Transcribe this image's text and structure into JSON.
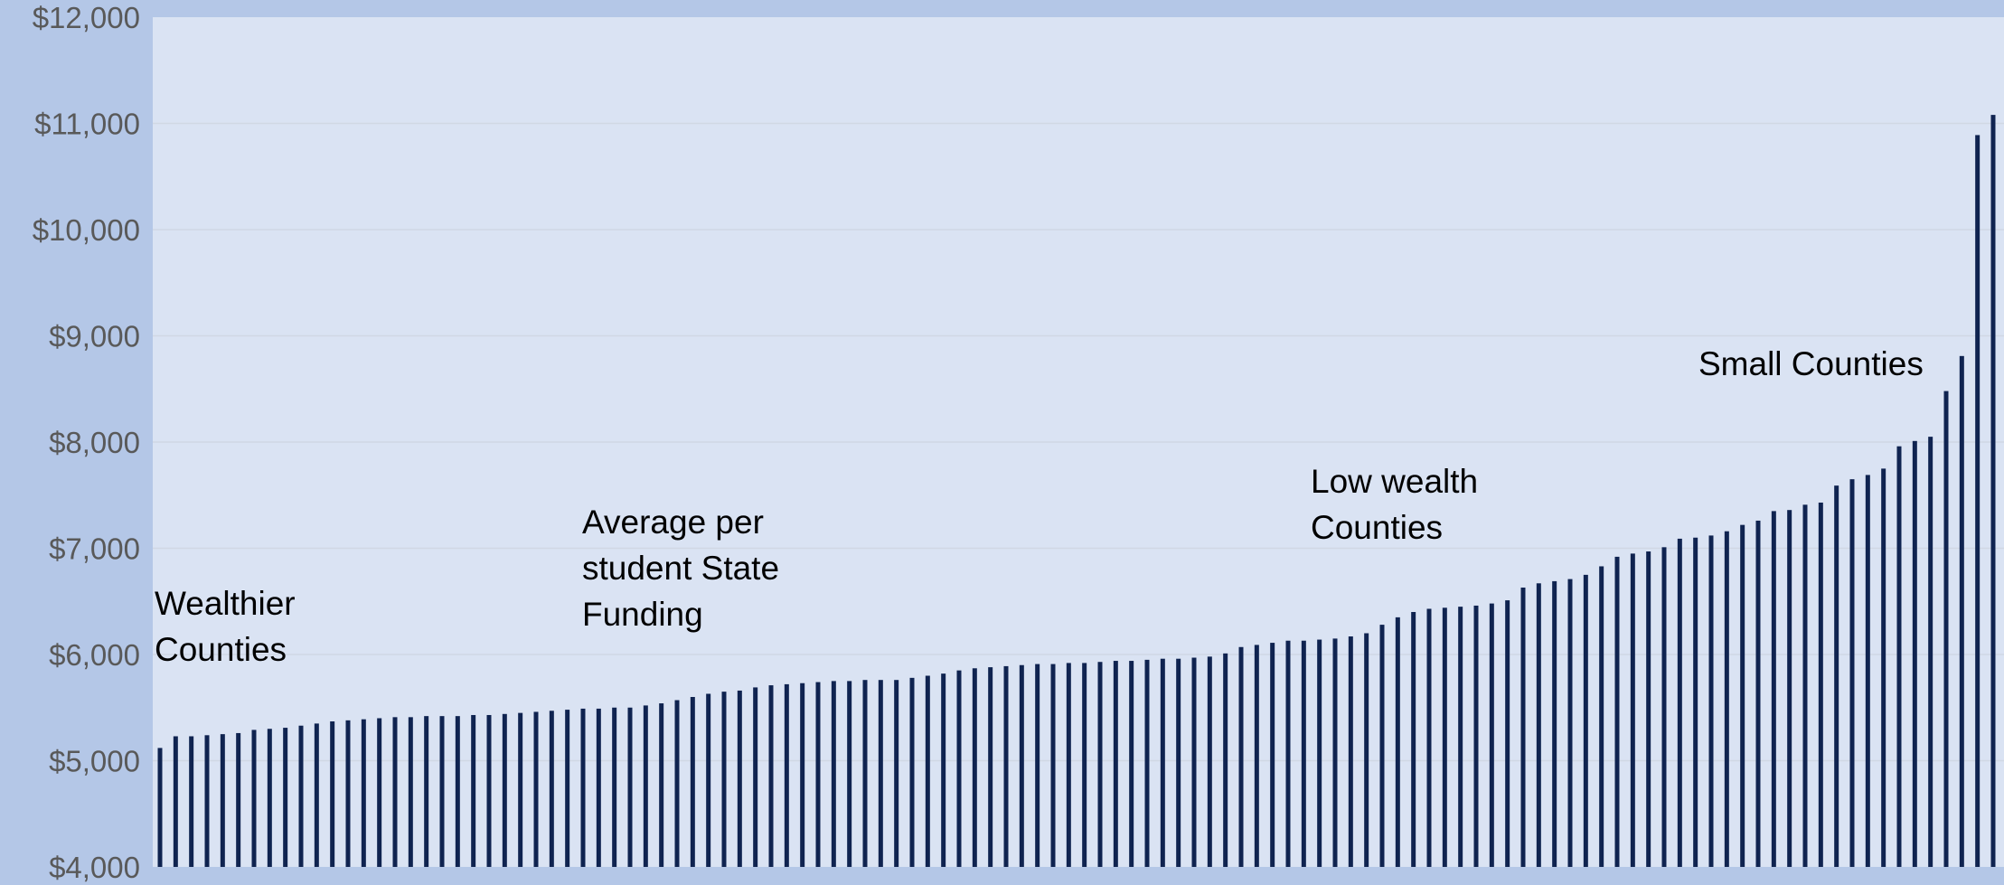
{
  "chart_data": {
    "type": "bar",
    "title": "",
    "xlabel": "",
    "ylabel": "",
    "ylim": [
      4000,
      12000
    ],
    "yticks": [
      4000,
      5000,
      6000,
      7000,
      8000,
      9000,
      10000,
      11000,
      12000
    ],
    "ytick_labels": [
      "$4,000",
      "$5,000",
      "$6,000",
      "$7,000",
      "$8,000",
      "$9,000",
      "$10,000",
      "$11,000",
      "$12,000"
    ],
    "grid": true,
    "legend": "none",
    "bar_color": "#0f2350",
    "plot_bg": "#dae3f3",
    "outer_bg": "#b4c7e7",
    "grid_color": "#d0d8e4",
    "values": [
      5120,
      5230,
      5230,
      5240,
      5250,
      5260,
      5290,
      5300,
      5310,
      5330,
      5350,
      5370,
      5380,
      5390,
      5400,
      5410,
      5410,
      5420,
      5420,
      5420,
      5430,
      5430,
      5440,
      5450,
      5460,
      5470,
      5480,
      5490,
      5490,
      5500,
      5500,
      5520,
      5540,
      5570,
      5600,
      5630,
      5650,
      5660,
      5690,
      5710,
      5720,
      5730,
      5740,
      5750,
      5750,
      5760,
      5760,
      5760,
      5780,
      5800,
      5820,
      5850,
      5870,
      5880,
      5890,
      5900,
      5910,
      5910,
      5920,
      5920,
      5930,
      5940,
      5940,
      5950,
      5960,
      5960,
      5970,
      5980,
      6010,
      6070,
      6090,
      6110,
      6130,
      6130,
      6140,
      6150,
      6170,
      6200,
      6280,
      6350,
      6400,
      6430,
      6440,
      6450,
      6460,
      6480,
      6510,
      6630,
      6670,
      6690,
      6710,
      6750,
      6830,
      6920,
      6950,
      6970,
      7010,
      7090,
      7100,
      7120,
      7160,
      7220,
      7260,
      7350,
      7360,
      7410,
      7430,
      7590,
      7650,
      7690,
      7750,
      7960,
      8010,
      8050,
      8480,
      8810,
      10890,
      11080
    ],
    "annotations": [
      {
        "lines": [
          "Wealthier",
          "Counties"
        ]
      },
      {
        "lines": [
          "Average per",
          "student State",
          "Funding"
        ]
      },
      {
        "lines": [
          "Low wealth",
          "Counties"
        ]
      },
      {
        "lines": [
          "Small Counties"
        ]
      }
    ]
  }
}
